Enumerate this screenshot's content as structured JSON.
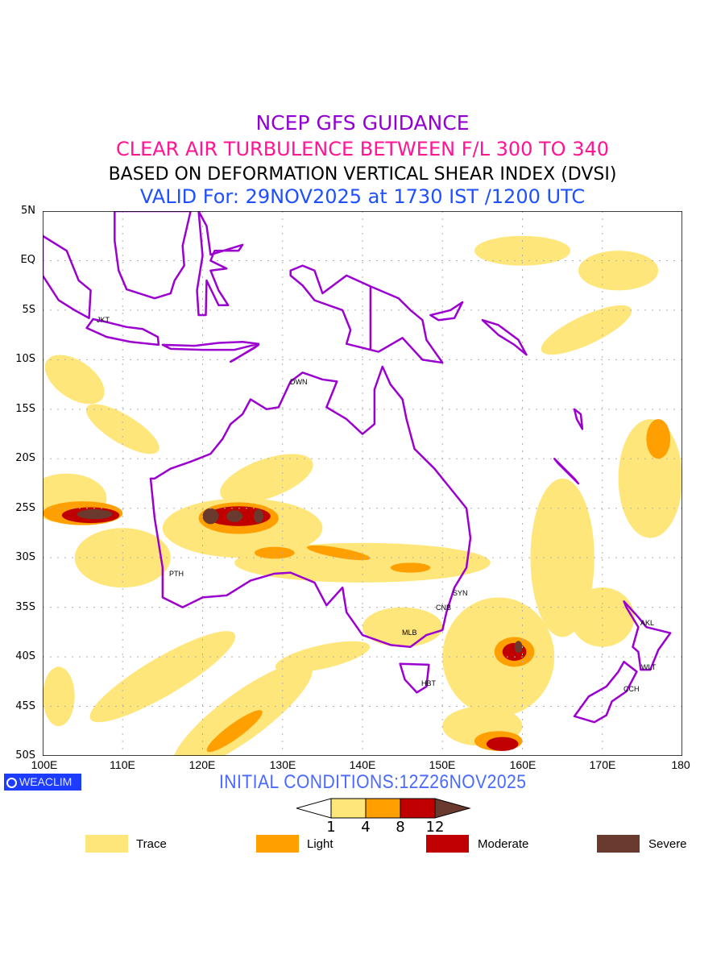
{
  "titles": {
    "line1": "NCEP GFS GUIDANCE",
    "line2": "CLEAR AIR TURBULENCE BETWEEN F/L 300 TO 340",
    "line3": "BASED ON DEFORMATION VERTICAL SHEAR INDEX (DVSI)",
    "line4": "VALID For: 29NOV2025 at 1730 IST /1200 UTC"
  },
  "axes": {
    "lat_labels": [
      "5N",
      "EQ",
      "5S",
      "10S",
      "15S",
      "20S",
      "25S",
      "30S",
      "35S",
      "40S",
      "45S",
      "50S"
    ],
    "lon_labels": [
      "100E",
      "110E",
      "120E",
      "130E",
      "140E",
      "150E",
      "160E",
      "170E",
      "180"
    ]
  },
  "cities": [
    "JKT",
    "DWN",
    "PTH",
    "SYN",
    "CNB",
    "MLB",
    "HBT",
    "AKL",
    "WLT",
    "CCH"
  ],
  "brand": "WEACLIM",
  "initial_conditions": "INITIAL CONDITIONS:12Z26NOV2025",
  "colorbar": {
    "ticks": [
      "1",
      "4",
      "8",
      "12"
    ],
    "colors": [
      "#ffffff",
      "#ffe67a",
      "#ffa000",
      "#c00000",
      "#6b3a2e"
    ]
  },
  "legend": [
    {
      "label": "Trace",
      "color": "#ffe67a"
    },
    {
      "label": "Light",
      "color": "#ffa000"
    },
    {
      "label": "Moderate",
      "color": "#c00000"
    },
    {
      "label": "Severe",
      "color": "#6b3a2e"
    }
  ],
  "colors": {
    "coast": "#9b00d0",
    "grid": "#b0b0b0"
  }
}
